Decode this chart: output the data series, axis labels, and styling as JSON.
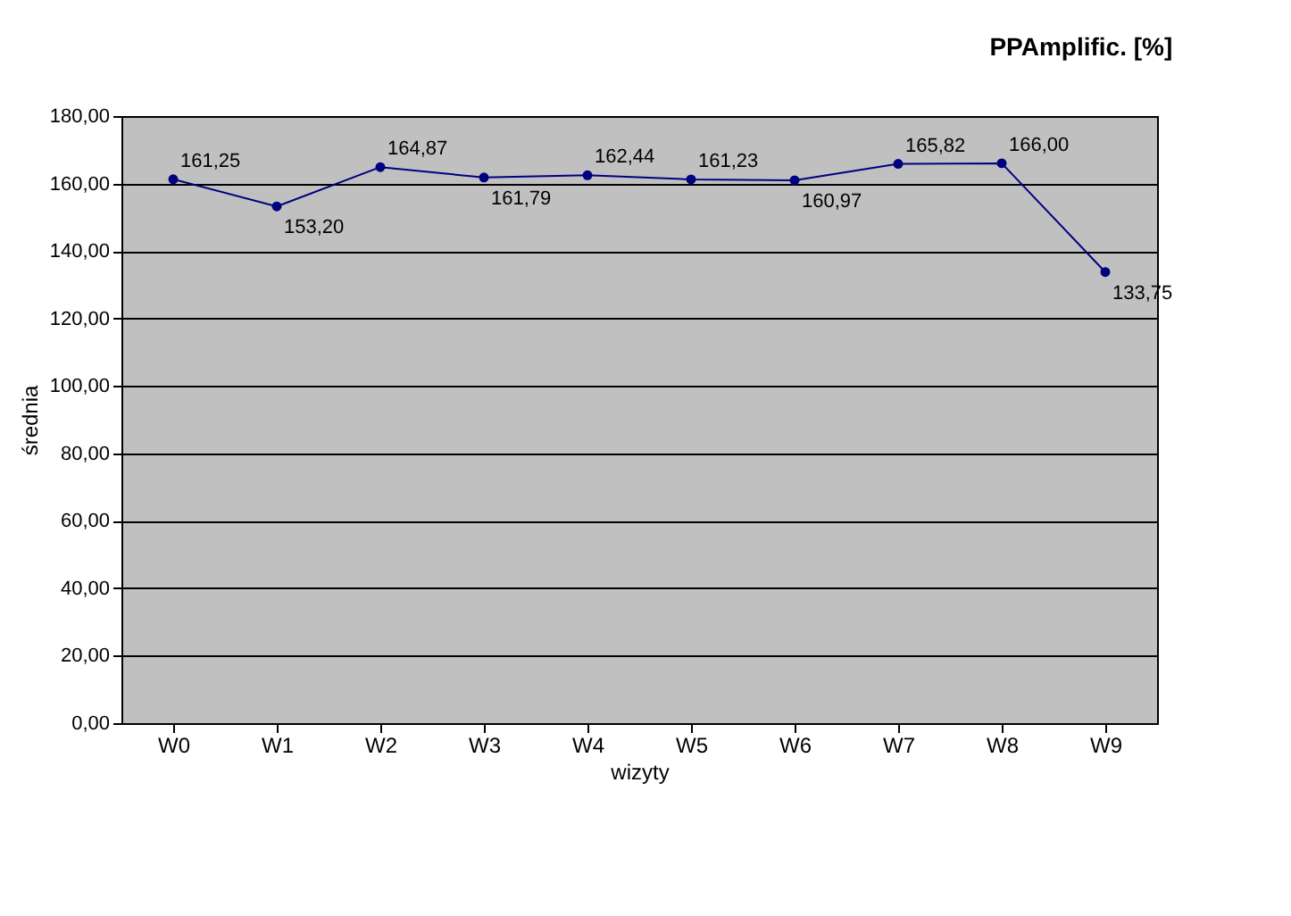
{
  "chart_data": {
    "type": "line",
    "title": "PPAmplific. [%]",
    "xlabel": "wizyty",
    "ylabel": "średnia",
    "categories": [
      "W0",
      "W1",
      "W2",
      "W3",
      "W4",
      "W5",
      "W6",
      "W7",
      "W8",
      "W9"
    ],
    "series": [
      {
        "color": "#000080",
        "values": [
          161.25,
          153.2,
          164.87,
          161.79,
          162.44,
          161.23,
          160.97,
          165.82,
          166.0,
          133.75
        ],
        "value_labels": [
          "161,25",
          "153,20",
          "164,87",
          "161,79",
          "162,44",
          "161,23",
          "160,97",
          "165,82",
          "166,00",
          "133,75"
        ]
      }
    ],
    "ylim": [
      0,
      180
    ],
    "yticks": [
      {
        "value": 0,
        "label": "0,00"
      },
      {
        "value": 20,
        "label": "20,00"
      },
      {
        "value": 40,
        "label": "40,00"
      },
      {
        "value": 60,
        "label": "60,00"
      },
      {
        "value": 80,
        "label": "80,00"
      },
      {
        "value": 100,
        "label": "100,00"
      },
      {
        "value": 120,
        "label": "120,00"
      },
      {
        "value": 140,
        "label": "140,00"
      },
      {
        "value": 160,
        "label": "160,00"
      },
      {
        "value": 180,
        "label": "180,00"
      }
    ],
    "grid": "y",
    "marker": "circle",
    "line_style": "solid"
  }
}
